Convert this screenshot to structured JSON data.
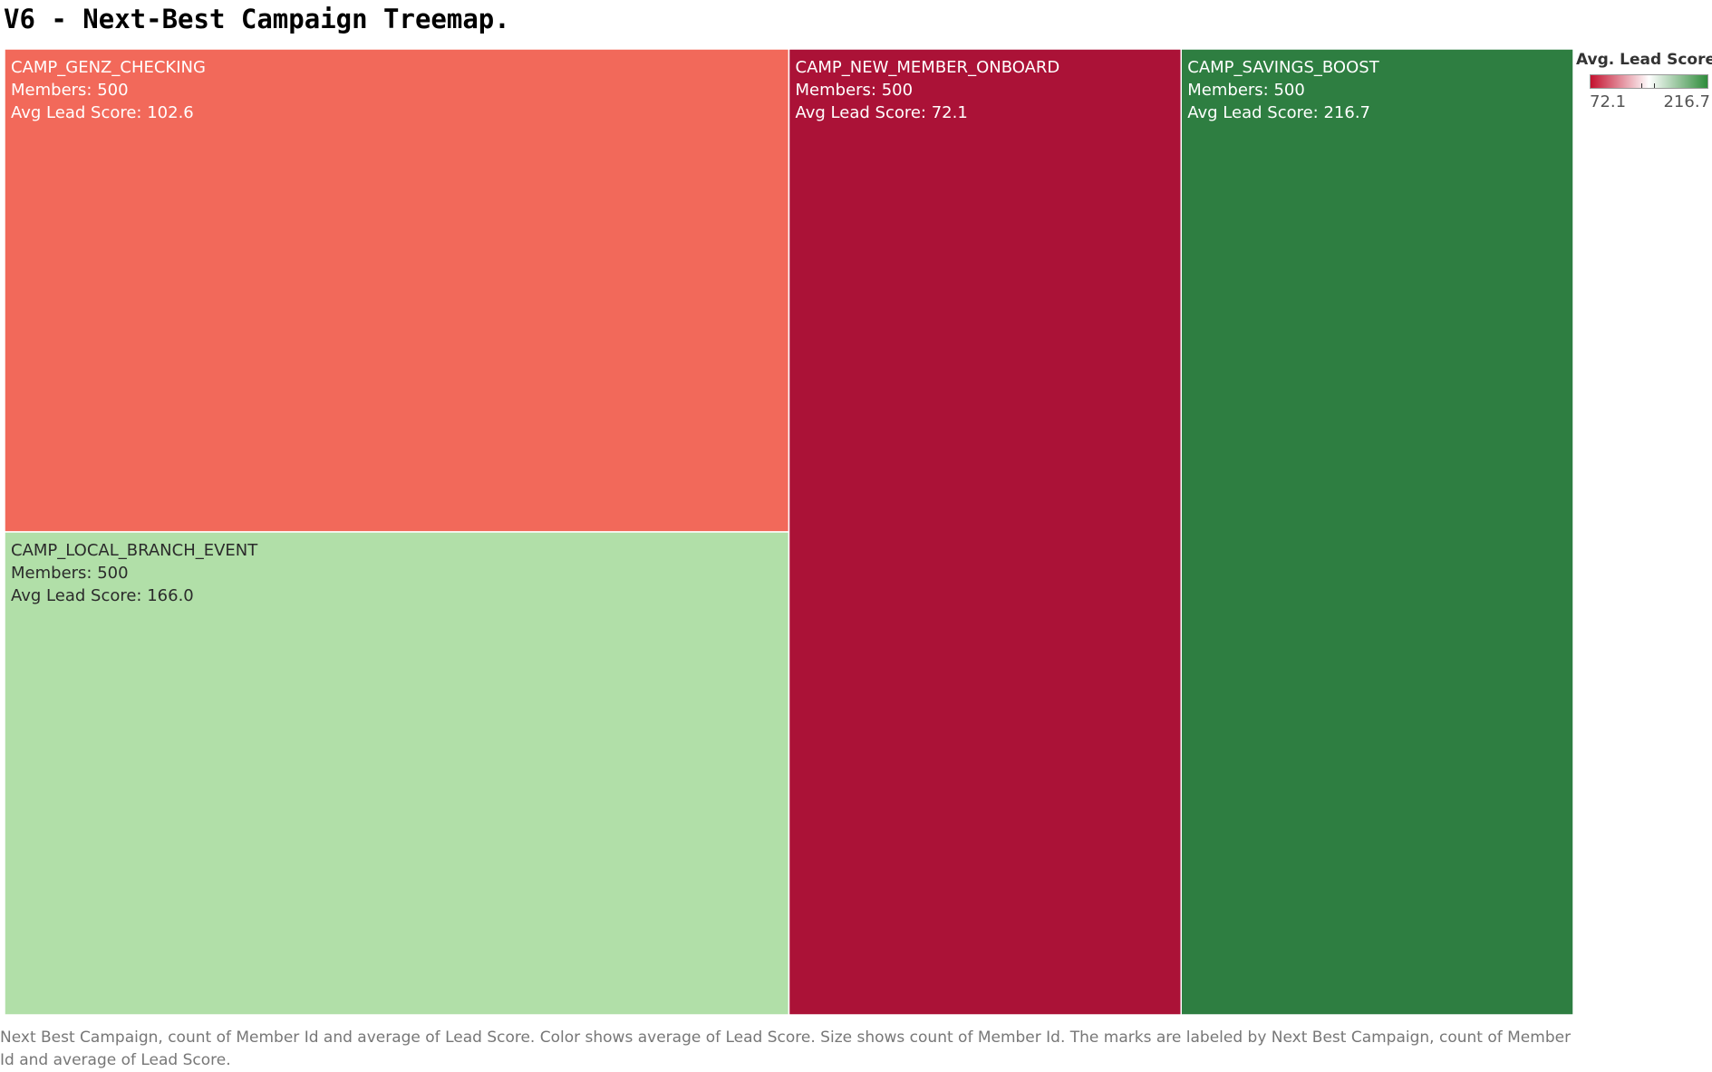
{
  "title": "V6 - Next-Best Campaign Treemap.",
  "chart_data": {
    "type": "treemap",
    "size_measure": "count of Member Id",
    "color_measure": "average of Lead Score",
    "tiles": [
      {
        "name": "CAMP_GENZ_CHECKING",
        "members": 500,
        "avg_lead_score": 102.6,
        "color": "#f2695a"
      },
      {
        "name": "CAMP_LOCAL_BRANCH_EVENT",
        "members": 500,
        "avg_lead_score": 166.0,
        "color": "#b1dfa8"
      },
      {
        "name": "CAMP_NEW_MEMBER_ONBOARD",
        "members": 500,
        "avg_lead_score": 72.1,
        "color": "#ab1237"
      },
      {
        "name": "CAMP_SAVINGS_BOOST",
        "members": 500,
        "avg_lead_score": 216.7,
        "color": "#2e7e41"
      }
    ],
    "label_templates": {
      "members_prefix": "Members:  ",
      "score_prefix": "Avg Lead Score: "
    },
    "legend": {
      "title": "Avg. Lead Score",
      "min_label": "72.1",
      "max_label": "216.7",
      "min": 72.1,
      "max": 216.7,
      "colors": [
        "#c4122f",
        "#ffffff",
        "#2e8b3a"
      ],
      "position": "top-right"
    }
  },
  "footer": "Next Best Campaign, count of Member Id and average of Lead Score.  Color shows average of Lead Score.  Size shows count of Member Id.  The marks are labeled by Next Best Campaign, count of Member Id and average of Lead Score."
}
